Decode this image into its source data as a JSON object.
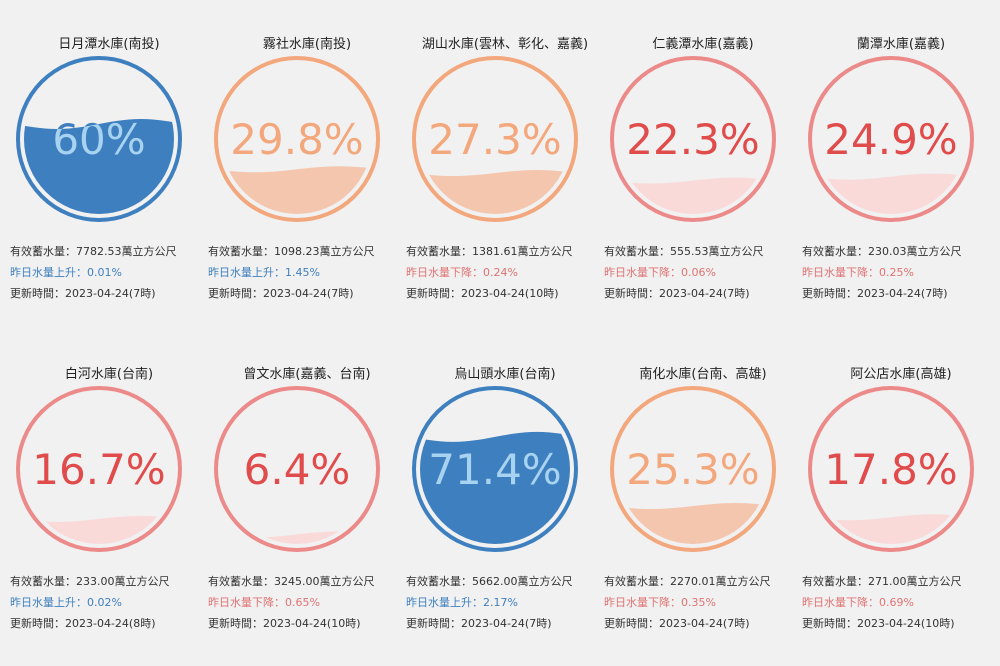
{
  "colors": {
    "background": "#f1f1f1",
    "up_text": "#3e7fbf",
    "down_text": "#e07373"
  },
  "levels": {
    "high": {
      "ring": "#3e7fbf",
      "fill": "#3e7fbf",
      "text_on_fill": "#a8d3f0",
      "text": "#3e7fbf"
    },
    "mid": {
      "ring": "#f3a77c",
      "fill": "#f4c6ae",
      "text_on_fill": "#f3a77c",
      "text": "#f3a77c"
    },
    "low": {
      "ring": "#ec8a8a",
      "fill": "#fad9d9",
      "text_on_fill": "#e04b4b",
      "text": "#e04b4b"
    }
  },
  "reservoirs": [
    {
      "name": "日月潭水庫(南投)",
      "percent_label": "60%",
      "fill_fraction": 0.6,
      "level": "high",
      "volume": "有效蓄水量：7782.53萬立方公尺",
      "change": "昨日水量上升：0.01%",
      "change_dir": "up",
      "updated": "更新時間：2023-04-24(7時)"
    },
    {
      "name": "霧社水庫(南投)",
      "percent_label": "29.8%",
      "fill_fraction": 0.298,
      "level": "mid",
      "volume": "有效蓄水量：1098.23萬立方公尺",
      "change": "昨日水量上升：1.45%",
      "change_dir": "up",
      "updated": "更新時間：2023-04-24(7時)"
    },
    {
      "name": "湖山水庫(雲林、彰化、嘉義)",
      "percent_label": "27.3%",
      "fill_fraction": 0.273,
      "level": "mid",
      "volume": "有效蓄水量：1381.61萬立方公尺",
      "change": "昨日水量下降：0.24%",
      "change_dir": "down",
      "updated": "更新時間：2023-04-24(10時)"
    },
    {
      "name": "仁義潭水庫(嘉義)",
      "percent_label": "22.3%",
      "fill_fraction": 0.223,
      "level": "low",
      "volume": "有效蓄水量：555.53萬立方公尺",
      "change": "昨日水量下降：0.06%",
      "change_dir": "down",
      "updated": "更新時間：2023-04-24(7時)"
    },
    {
      "name": "蘭潭水庫(嘉義)",
      "percent_label": "24.9%",
      "fill_fraction": 0.249,
      "level": "low",
      "volume": "有效蓄水量：230.03萬立方公尺",
      "change": "昨日水量下降：0.25%",
      "change_dir": "down",
      "updated": "更新時間：2023-04-24(7時)"
    },
    {
      "name": "白河水庫(台南)",
      "percent_label": "16.7%",
      "fill_fraction": 0.167,
      "level": "low",
      "volume": "有效蓄水量：233.00萬立方公尺",
      "change": "昨日水量上升：0.02%",
      "change_dir": "up",
      "updated": "更新時間：2023-04-24(8時)"
    },
    {
      "name": "曾文水庫(嘉義、台南)",
      "percent_label": "6.4%",
      "fill_fraction": 0.064,
      "level": "low",
      "volume": "有效蓄水量：3245.00萬立方公尺",
      "change": "昨日水量下降：0.65%",
      "change_dir": "down",
      "updated": "更新時間：2023-04-24(10時)"
    },
    {
      "name": "烏山頭水庫(台南)",
      "percent_label": "71.4%",
      "fill_fraction": 0.714,
      "level": "high",
      "volume": "有效蓄水量：5662.00萬立方公尺",
      "change": "昨日水量上升：2.17%",
      "change_dir": "up",
      "updated": "更新時間：2023-04-24(7時)"
    },
    {
      "name": "南化水庫(台南、高雄)",
      "percent_label": "25.3%",
      "fill_fraction": 0.253,
      "level": "mid",
      "volume": "有效蓄水量：2270.01萬立方公尺",
      "change": "昨日水量下降：0.35%",
      "change_dir": "down",
      "updated": "更新時間：2023-04-24(7時)"
    },
    {
      "name": "阿公店水庫(高雄)",
      "percent_label": "17.8%",
      "fill_fraction": 0.178,
      "level": "low",
      "volume": "有效蓄水量：271.00萬立方公尺",
      "change": "昨日水量下降：0.69%",
      "change_dir": "down",
      "updated": "更新時間：2023-04-24(10時)"
    }
  ]
}
